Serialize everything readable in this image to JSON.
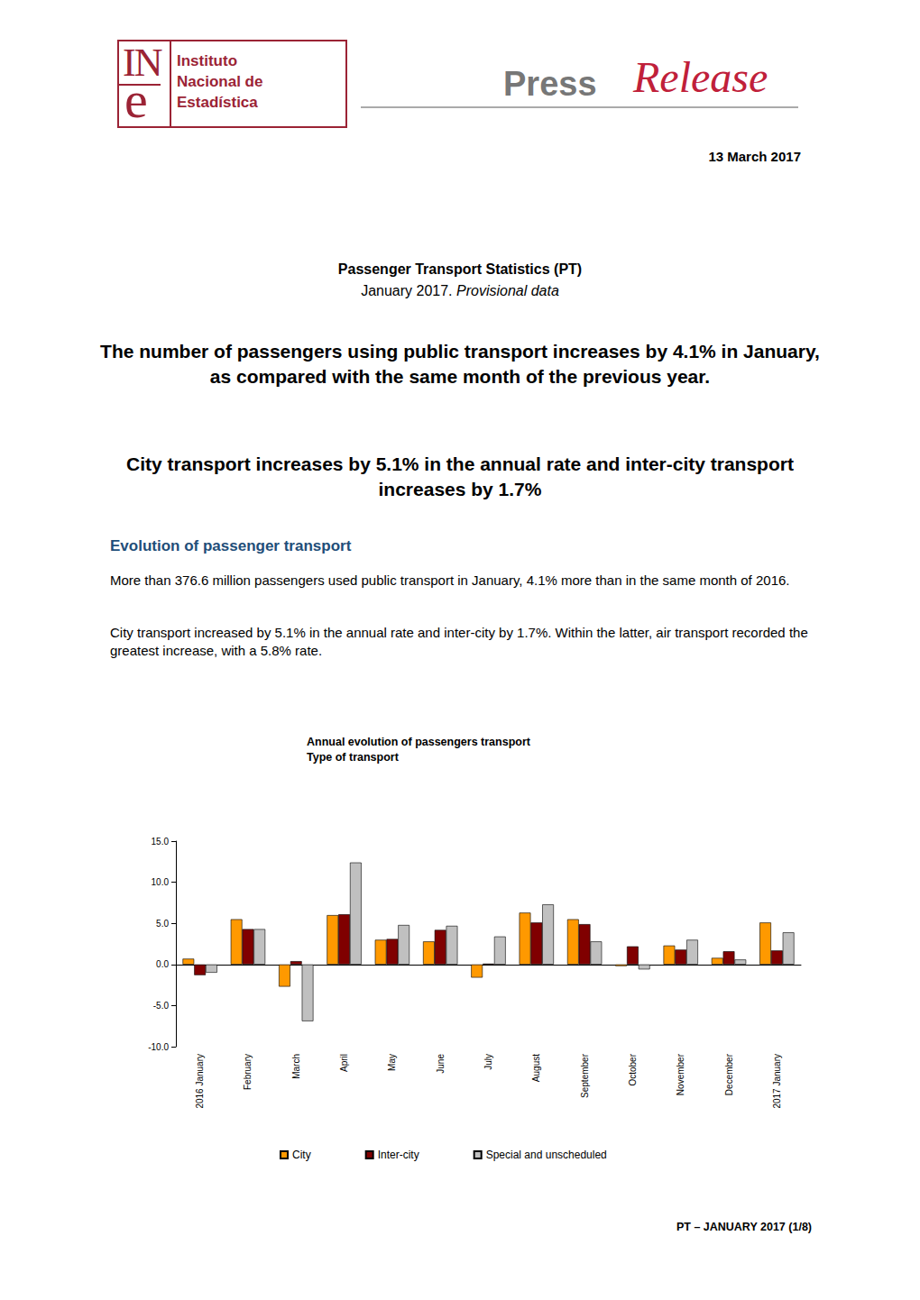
{
  "header": {
    "logo": {
      "mark_top": "IN",
      "mark_bottom": "e",
      "name": [
        "Instituto",
        "Nacional de",
        "Estadística"
      ]
    },
    "press": "Press",
    "release": "Release",
    "date": "13 March 2017"
  },
  "survey": "Passenger Transport Statistics (PT)",
  "period": {
    "text": "January 2017.",
    "emphasis": "Provisional data"
  },
  "headlines": [
    "The number of passengers using public transport increases by 4.1% in January, as compared with the same month of the previous year.",
    "City transport increases by 5.1% in the annual rate and inter-city transport increases by 1.7%"
  ],
  "section": "Evolution of passenger transport",
  "paragraphs": [
    "More than 376.6 million passengers used public transport in January, 4.1% more than in the same month of 2016.",
    "City transport increased by 5.1% in the annual rate and inter-city by 1.7%. Within the latter, air transport recorded the greatest increase, with a 5.8% rate."
  ],
  "chart_data": {
    "type": "bar",
    "title": "Annual evolution of passengers transport",
    "subtitle": "Type of transport",
    "categories": [
      "2016 January",
      "February",
      "March",
      "April",
      "May",
      "June",
      "July",
      "August",
      "September",
      "October",
      "November",
      "December",
      "2017 January"
    ],
    "series": [
      {
        "name": "City",
        "color": "#ff9900",
        "values": [
          0.7,
          5.5,
          -2.7,
          6.0,
          3.0,
          2.8,
          -1.6,
          6.3,
          5.5,
          -0.2,
          2.3,
          0.8,
          5.1
        ]
      },
      {
        "name": "Inter-city",
        "color": "#800000",
        "values": [
          -1.3,
          4.3,
          0.4,
          6.1,
          3.1,
          4.2,
          0.1,
          5.1,
          4.9,
          2.2,
          1.8,
          1.6,
          1.7
        ]
      },
      {
        "name": "Special and unscheduled",
        "color": "#c0c0c0",
        "values": [
          -1.0,
          4.3,
          -6.9,
          12.4,
          4.8,
          4.7,
          3.4,
          7.3,
          2.8,
          -0.6,
          3.0,
          0.6,
          3.9
        ]
      }
    ],
    "ylim": [
      -10,
      15
    ],
    "yticks": [
      {
        "value": -10,
        "label": "-10.0"
      },
      {
        "value": -5,
        "label": "-5.0"
      },
      {
        "value": 0,
        "label": "0.0"
      },
      {
        "value": 5,
        "label": "5.0"
      },
      {
        "value": 10,
        "label": "10.0"
      },
      {
        "value": 15,
        "label": "15.0"
      }
    ],
    "grid": false,
    "legend": "bottom"
  },
  "footer": "PT – JANUARY 2017 (1/8)"
}
